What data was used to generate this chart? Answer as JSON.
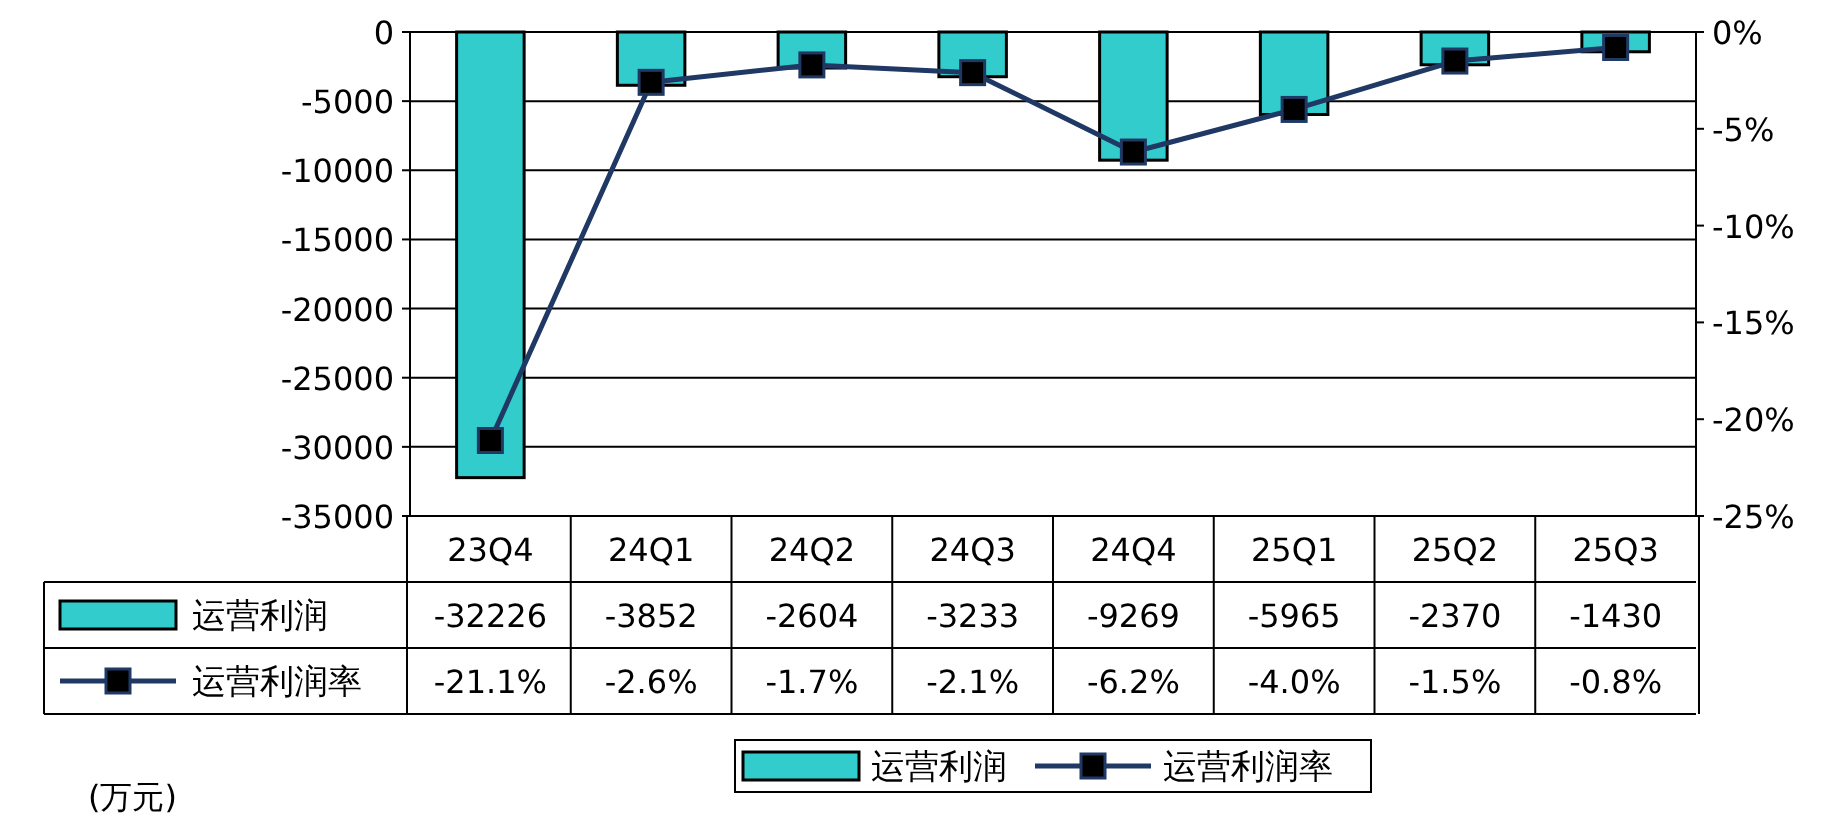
{
  "chart_data": {
    "type": "bar",
    "categories": [
      "23Q4",
      "24Q1",
      "24Q2",
      "24Q3",
      "24Q4",
      "25Q1",
      "25Q2",
      "25Q3"
    ],
    "series": [
      {
        "name": "运营利润",
        "color": "#33cccc",
        "values": [
          -32226,
          -3852,
          -2604,
          -3233,
          -9269,
          -5965,
          -2370,
          -1430
        ],
        "value_labels": [
          "-32226",
          "-3852",
          "-2604",
          "-3233",
          "-9269",
          "-5965",
          "-2370",
          "-1430"
        ]
      },
      {
        "name": "运营利润率",
        "type": "line",
        "axis": "y2",
        "color": "#1f3864",
        "marker": "square",
        "values": [
          -21.1,
          -2.6,
          -1.7,
          -2.1,
          -6.2,
          -4.0,
          -1.5,
          -0.8
        ],
        "value_labels": [
          "-21.1%",
          "-2.6%",
          "-1.7%",
          "-2.1%",
          "-6.2%",
          "-4.0%",
          "-1.5%",
          "-0.8%"
        ]
      }
    ],
    "ylim": [
      -35000,
      0
    ],
    "yticks": [
      0,
      -5000,
      -10000,
      -15000,
      -20000,
      -25000,
      -30000,
      -35000
    ],
    "y2lim": [
      -25,
      0
    ],
    "y2ticks": [
      {
        "value": 0,
        "label": "0%"
      },
      {
        "value": -5,
        "label": "-5%"
      },
      {
        "value": -10,
        "label": "-10%"
      },
      {
        "value": -15,
        "label": "-15%"
      },
      {
        "value": -20,
        "label": "-20%"
      },
      {
        "value": -25,
        "label": "-25%"
      }
    ],
    "grid": "y",
    "legend": "bottom",
    "annotations": [
      "(万元)"
    ]
  }
}
